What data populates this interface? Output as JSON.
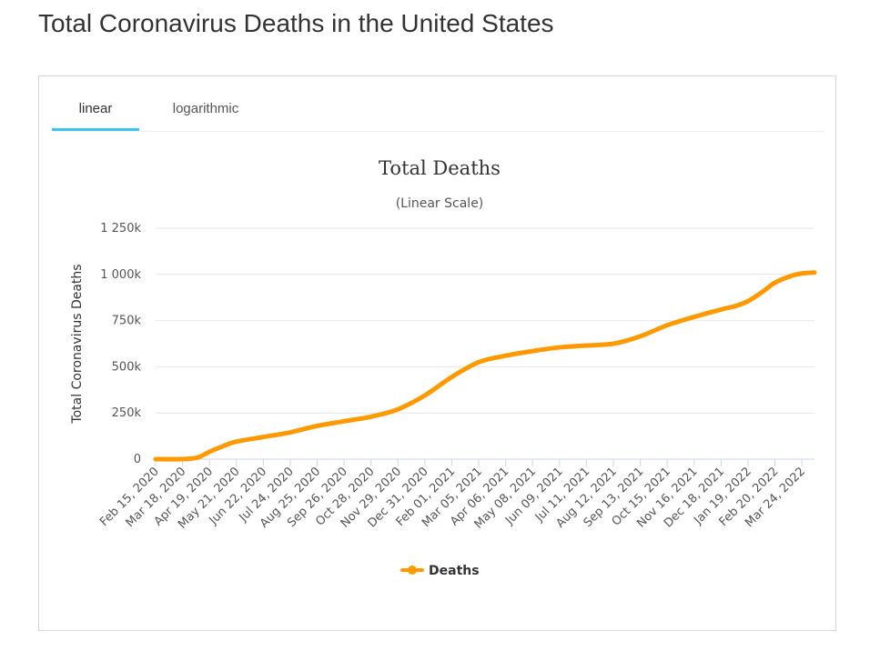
{
  "page": {
    "title": "Total Coronavirus Deaths in the United States"
  },
  "tabs": [
    {
      "label": "linear",
      "active": true
    },
    {
      "label": "logarithmic",
      "active": false
    }
  ],
  "colors": {
    "series": "#ff9900",
    "tab_accent": "#3bc3f1",
    "grid": "#e6e6e6"
  },
  "chart_data": {
    "type": "line",
    "title": "Total Deaths",
    "subtitle": "(Linear Scale)",
    "ylabel": "Total Coronavirus Deaths",
    "xlabel": "",
    "ylim": [
      0,
      1250000
    ],
    "yticks": [
      {
        "value": 0,
        "label": "0"
      },
      {
        "value": 250000,
        "label": "250k"
      },
      {
        "value": 500000,
        "label": "500k"
      },
      {
        "value": 750000,
        "label": "750k"
      },
      {
        "value": 1000000,
        "label": "1 000k"
      },
      {
        "value": 1250000,
        "label": "1 250k"
      }
    ],
    "grid": true,
    "legend_position": "bottom-center",
    "x_tick_labels": [
      "Feb 15, 2020",
      "Mar 18, 2020",
      "Apr 19, 2020",
      "May 21, 2020",
      "Jun 22, 2020",
      "Jul 24, 2020",
      "Aug 25, 2020",
      "Sep 26, 2020",
      "Oct 28, 2020",
      "Nov 29, 2020",
      "Dec 31, 2020",
      "Feb 01, 2021",
      "Mar 05, 2021",
      "Apr 06, 2021",
      "May 08, 2021",
      "Jun 09, 2021",
      "Jul 11, 2021",
      "Aug 12, 2021",
      "Sep 13, 2021",
      "Oct 15, 2021",
      "Nov 16, 2021",
      "Dec 18, 2021",
      "Jan 19, 2022",
      "Feb 20, 2022",
      "Mar 24, 2022"
    ],
    "series": [
      {
        "name": "Deaths",
        "color": "#ff9900",
        "x": [
          "Feb 15, 2020",
          "Mar 18, 2020",
          "Apr 05, 2020",
          "Apr 19, 2020",
          "May 05, 2020",
          "May 21, 2020",
          "Jun 22, 2020",
          "Jul 24, 2020",
          "Aug 25, 2020",
          "Sep 26, 2020",
          "Oct 28, 2020",
          "Nov 29, 2020",
          "Dec 31, 2020",
          "Feb 01, 2021",
          "Mar 05, 2021",
          "Apr 06, 2021",
          "May 08, 2021",
          "Jun 09, 2021",
          "Jul 11, 2021",
          "Aug 12, 2021",
          "Sep 13, 2021",
          "Oct 15, 2021",
          "Nov 16, 2021",
          "Dec 18, 2021",
          "Jan 05, 2022",
          "Jan 19, 2022",
          "Feb 05, 2022",
          "Feb 20, 2022",
          "Mar 10, 2022",
          "Mar 24, 2022",
          "Apr 08, 2022"
        ],
        "values": [
          0,
          200,
          9000,
          40000,
          70000,
          95000,
          120000,
          145000,
          180000,
          205000,
          230000,
          270000,
          345000,
          445000,
          525000,
          560000,
          585000,
          605000,
          615000,
          625000,
          665000,
          725000,
          770000,
          810000,
          830000,
          855000,
          905000,
          955000,
          990000,
          1005000,
          1010000
        ]
      }
    ]
  }
}
